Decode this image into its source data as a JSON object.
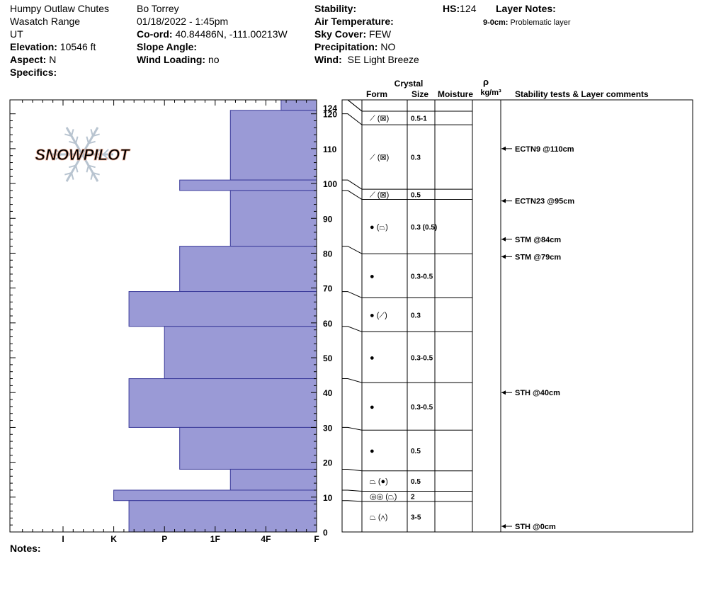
{
  "header": {
    "location": "Humpy Outlaw Chutes",
    "range": "Wasatch Range",
    "state": "UT",
    "elevation_label": "Elevation:",
    "elevation_value": "10546 ft",
    "aspect_label": "Aspect:",
    "aspect_value": "N",
    "specifics_label": "Specifics:",
    "observer": "Bo Torrey",
    "datetime": "01/18/2022 - 1:45pm",
    "coord_label": "Co-ord:",
    "coord_value": "40.84486N, -111.00213W",
    "slope_label": "Slope Angle:",
    "wind_loading_label": "Wind Loading:",
    "wind_loading_value": "no",
    "stability_label": "Stability:",
    "air_temp_label": "Air Temperature:",
    "sky_label": "Sky Cover:",
    "sky_value": "FEW",
    "precip_label": "Precipitation:",
    "precip_value": "NO",
    "wind_label": "Wind:",
    "wind_value": "SE  Light Breeze",
    "hs_label": "HS:",
    "hs_value": "124",
    "layer_notes_label": "Layer Notes:",
    "layer_note_depth": "9-0cm:",
    "layer_note_text": "Problematic layer"
  },
  "logo_text": "SNOWPILOT",
  "notes_label": "Notes:",
  "columns": {
    "crystal": "Crystal",
    "form": "Form",
    "size": "Size",
    "moisture": "Moisture",
    "rho": "ρ",
    "density_unit": "kg/m³",
    "comments": "Stability tests & Layer comments"
  },
  "chart_data": {
    "type": "bar",
    "hs": 124,
    "ylim": [
      0,
      124
    ],
    "y_ticks": [
      0,
      10,
      20,
      30,
      40,
      50,
      60,
      70,
      80,
      90,
      100,
      110,
      120,
      124
    ],
    "hardness_scale": [
      "F",
      "4F",
      "1F",
      "P",
      "K",
      "I"
    ],
    "x_tick_labels": [
      "I",
      "K",
      "P",
      "1F",
      "4F",
      "F"
    ],
    "hardness_layers": [
      {
        "bottom": 121,
        "top": 124,
        "hardness": 0.7
      },
      {
        "bottom": 101,
        "top": 121,
        "hardness": 1.7
      },
      {
        "bottom": 98,
        "top": 101,
        "hardness": 2.7
      },
      {
        "bottom": 82,
        "top": 98,
        "hardness": 1.7
      },
      {
        "bottom": 69,
        "top": 82,
        "hardness": 2.7
      },
      {
        "bottom": 59,
        "top": 69,
        "hardness": 3.7
      },
      {
        "bottom": 44,
        "top": 59,
        "hardness": 3.0
      },
      {
        "bottom": 30,
        "top": 44,
        "hardness": 3.7
      },
      {
        "bottom": 18,
        "top": 30,
        "hardness": 2.7
      },
      {
        "bottom": 12,
        "top": 18,
        "hardness": 1.7
      },
      {
        "bottom": 9,
        "top": 12,
        "hardness": 4.0
      },
      {
        "bottom": 0,
        "top": 9,
        "hardness": 3.7
      }
    ],
    "strat_layers": [
      {
        "bottom": 124,
        "top": 124,
        "form": "",
        "size": ""
      },
      {
        "bottom": 120,
        "top": 124,
        "form": "⟋ (⊠)",
        "size": "0.5-1"
      },
      {
        "bottom": 101,
        "top": 120,
        "form": "⟋ (⊠)",
        "size": "0.3"
      },
      {
        "bottom": 98,
        "top": 101,
        "form": "⟋ (⊠)",
        "size": "0.5"
      },
      {
        "bottom": 82,
        "top": 98,
        "form": "● (⏢)",
        "size": "0.3 (0.5)"
      },
      {
        "bottom": 69,
        "top": 82,
        "form": "●",
        "size": "0.3-0.5"
      },
      {
        "bottom": 59,
        "top": 69,
        "form": "● (⟋)",
        "size": "0.3"
      },
      {
        "bottom": 44,
        "top": 59,
        "form": "●",
        "size": "0.3-0.5"
      },
      {
        "bottom": 30,
        "top": 44,
        "form": "●",
        "size": "0.3-0.5"
      },
      {
        "bottom": 18,
        "top": 30,
        "form": "●",
        "size": "0.5"
      },
      {
        "bottom": 12,
        "top": 18,
        "form": "⏢ (●)",
        "size": "0.5"
      },
      {
        "bottom": 9,
        "top": 12,
        "form": "◎◎ (⏢)",
        "size": "2"
      },
      {
        "bottom": 0,
        "top": 9,
        "form": "⏢ (∧)",
        "size": "3-5"
      }
    ],
    "tests": [
      {
        "depth": 110,
        "label": "ECTN9 @110cm"
      },
      {
        "depth": 95,
        "label": "ECTN23 @95cm"
      },
      {
        "depth": 84,
        "label": "STM @84cm"
      },
      {
        "depth": 79,
        "label": "STM @79cm"
      },
      {
        "depth": 40,
        "label": "STH @40cm"
      },
      {
        "depth": 0,
        "label": "STH @0cm"
      }
    ],
    "colors": {
      "bar_fill": "#9a9ad6",
      "bar_stroke": "#3a3a9a",
      "logo": "#f0c8b8",
      "flake": "#b8c4d0"
    }
  }
}
